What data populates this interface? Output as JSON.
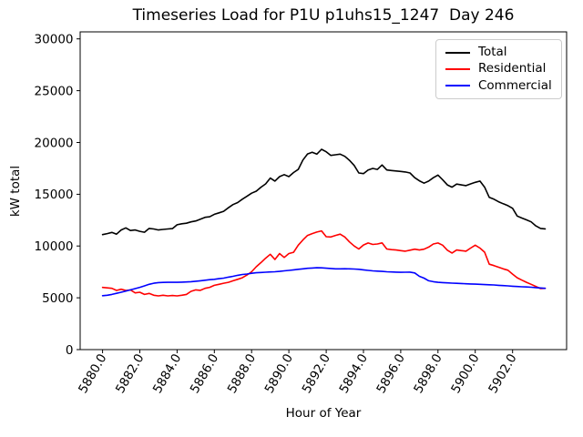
{
  "chart_data": {
    "type": "line",
    "title": "Timeseries Load for P1U p1uhs15_1247  Day 246",
    "xlabel": "Hour of Year",
    "ylabel": "kW total",
    "xlim": [
      5878.8,
      5904.9
    ],
    "ylim": [
      0,
      30680
    ],
    "grid": false,
    "legend_position": "upper right",
    "n_points": 96,
    "y_ticks": [
      0,
      5000,
      10000,
      15000,
      20000,
      25000,
      30000
    ],
    "y_tick_labels": [
      "0",
      "5000",
      "10000",
      "15000",
      "20000",
      "25000",
      "30000"
    ],
    "x_ticks": [
      5880,
      5882,
      5884,
      5886,
      5888,
      5890,
      5892,
      5894,
      5896,
      5898,
      5900,
      5902
    ],
    "x_tick_labels": [
      "5880.0",
      "5882.0",
      "5884.0",
      "5886.0",
      "5888.0",
      "5890.0",
      "5892.0",
      "5894.0",
      "5896.0",
      "5898.0",
      "5900.0",
      "5902.0"
    ],
    "x": [
      5880.0,
      5880.25,
      5880.5,
      5880.75,
      5881.0,
      5881.25,
      5881.5,
      5881.75,
      5882.0,
      5882.25,
      5882.5,
      5882.75,
      5883.0,
      5883.25,
      5883.5,
      5883.75,
      5884.0,
      5884.25,
      5884.5,
      5884.75,
      5885.0,
      5885.25,
      5885.5,
      5885.75,
      5886.0,
      5886.25,
      5886.5,
      5886.75,
      5887.0,
      5887.25,
      5887.5,
      5887.75,
      5888.0,
      5888.25,
      5888.5,
      5888.75,
      5889.0,
      5889.25,
      5889.5,
      5889.75,
      5890.0,
      5890.25,
      5890.5,
      5890.75,
      5891.0,
      5891.25,
      5891.5,
      5891.75,
      5892.0,
      5892.25,
      5892.5,
      5892.75,
      5893.0,
      5893.25,
      5893.5,
      5893.75,
      5894.0,
      5894.25,
      5894.5,
      5894.75,
      5895.0,
      5895.25,
      5895.5,
      5895.75,
      5896.0,
      5896.25,
      5896.5,
      5896.75,
      5897.0,
      5897.25,
      5897.5,
      5897.75,
      5898.0,
      5898.25,
      5898.5,
      5898.75,
      5899.0,
      5899.25,
      5899.5,
      5899.75,
      5900.0,
      5900.25,
      5900.5,
      5900.75,
      5901.0,
      5901.25,
      5901.5,
      5901.75,
      5902.0,
      5902.25,
      5902.5,
      5902.75,
      5903.0,
      5903.25,
      5903.5,
      5903.75
    ],
    "series": [
      {
        "name": "Total",
        "color": "#000000",
        "values": [
          11100,
          11200,
          11310,
          11150,
          11550,
          11750,
          11500,
          11550,
          11420,
          11330,
          11700,
          11650,
          11550,
          11600,
          11650,
          11680,
          12050,
          12150,
          12200,
          12330,
          12420,
          12600,
          12770,
          12830,
          13060,
          13200,
          13350,
          13700,
          14000,
          14200,
          14520,
          14800,
          15100,
          15300,
          15680,
          16000,
          16560,
          16270,
          16700,
          16900,
          16700,
          17100,
          17400,
          18300,
          18890,
          19060,
          18870,
          19340,
          19100,
          18750,
          18810,
          18870,
          18660,
          18280,
          17780,
          17050,
          16990,
          17340,
          17490,
          17400,
          17830,
          17340,
          17290,
          17250,
          17200,
          17150,
          17050,
          16600,
          16300,
          16070,
          16270,
          16600,
          16850,
          16400,
          15900,
          15680,
          15980,
          15900,
          15830,
          16000,
          16150,
          16270,
          15680,
          14700,
          14520,
          14280,
          14080,
          13900,
          13640,
          12900,
          12700,
          12530,
          12330,
          11950,
          11700,
          11660
        ]
      },
      {
        "name": "Residential",
        "color": "#ff0000",
        "values": [
          6000,
          5960,
          5920,
          5710,
          5830,
          5710,
          5760,
          5480,
          5540,
          5330,
          5420,
          5250,
          5190,
          5250,
          5190,
          5220,
          5190,
          5250,
          5330,
          5630,
          5770,
          5720,
          5920,
          6010,
          6210,
          6300,
          6410,
          6500,
          6650,
          6790,
          6940,
          7200,
          7520,
          8000,
          8400,
          8830,
          9200,
          8700,
          9270,
          8900,
          9270,
          9400,
          10080,
          10580,
          11020,
          11200,
          11350,
          11460,
          10900,
          10870,
          11020,
          11150,
          10870,
          10400,
          10000,
          9710,
          10100,
          10290,
          10150,
          10200,
          10300,
          9710,
          9650,
          9620,
          9560,
          9500,
          9600,
          9700,
          9620,
          9700,
          9900,
          10200,
          10290,
          10080,
          9600,
          9330,
          9620,
          9560,
          9500,
          9800,
          10080,
          9800,
          9410,
          8250,
          8110,
          7960,
          7800,
          7670,
          7290,
          6940,
          6710,
          6500,
          6300,
          6100,
          5890,
          5920
        ]
      },
      {
        "name": "Commercial",
        "color": "#0000ff",
        "values": [
          5200,
          5250,
          5330,
          5430,
          5540,
          5650,
          5770,
          5890,
          6010,
          6150,
          6300,
          6410,
          6470,
          6490,
          6500,
          6500,
          6500,
          6510,
          6530,
          6560,
          6600,
          6650,
          6700,
          6750,
          6790,
          6850,
          6900,
          7000,
          7080,
          7170,
          7250,
          7300,
          7370,
          7420,
          7450,
          7470,
          7500,
          7520,
          7550,
          7600,
          7650,
          7700,
          7750,
          7800,
          7850,
          7880,
          7900,
          7890,
          7860,
          7830,
          7800,
          7800,
          7810,
          7800,
          7780,
          7750,
          7700,
          7650,
          7600,
          7580,
          7550,
          7520,
          7500,
          7480,
          7460,
          7470,
          7480,
          7400,
          7080,
          6900,
          6650,
          6560,
          6500,
          6470,
          6440,
          6420,
          6400,
          6380,
          6360,
          6340,
          6320,
          6300,
          6280,
          6260,
          6240,
          6210,
          6180,
          6150,
          6120,
          6090,
          6070,
          6050,
          6020,
          5990,
          5950,
          5920
        ]
      }
    ]
  }
}
